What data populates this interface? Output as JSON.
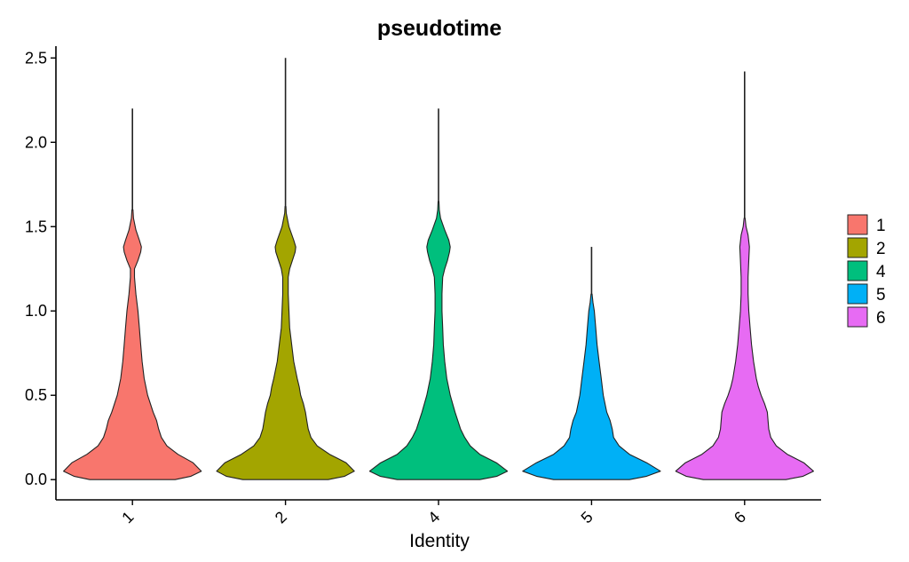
{
  "chart_data": {
    "type": "violin",
    "title": "pseudotime",
    "xlabel": "Identity",
    "ylabel": "",
    "ylim": [
      -0.12,
      2.57
    ],
    "yticks": [
      0.0,
      0.5,
      1.0,
      1.5,
      2.0,
      2.5
    ],
    "ytick_labels": [
      "0.0",
      "0.5",
      "1.0",
      "1.5",
      "2.0",
      "2.5"
    ],
    "categories": [
      "1",
      "2",
      "4",
      "5",
      "6"
    ],
    "legend": {
      "position": "right",
      "entries": [
        "1",
        "2",
        "4",
        "5",
        "6"
      ]
    },
    "grid": false,
    "series": [
      {
        "name": "1",
        "color": "#F8766D",
        "min": 0.0,
        "max": 2.2,
        "profile": [
          [
            0.0,
            0.62
          ],
          [
            0.02,
            0.85
          ],
          [
            0.05,
            1.0
          ],
          [
            0.1,
            0.88
          ],
          [
            0.15,
            0.66
          ],
          [
            0.2,
            0.5
          ],
          [
            0.25,
            0.42
          ],
          [
            0.3,
            0.38
          ],
          [
            0.35,
            0.35
          ],
          [
            0.4,
            0.3
          ],
          [
            0.5,
            0.22
          ],
          [
            0.6,
            0.17
          ],
          [
            0.7,
            0.14
          ],
          [
            0.8,
            0.12
          ],
          [
            0.9,
            0.1
          ],
          [
            1.0,
            0.08
          ],
          [
            1.1,
            0.05
          ],
          [
            1.2,
            0.03
          ],
          [
            1.25,
            0.03
          ],
          [
            1.3,
            0.08
          ],
          [
            1.35,
            0.12
          ],
          [
            1.38,
            0.13
          ],
          [
            1.42,
            0.1
          ],
          [
            1.48,
            0.05
          ],
          [
            1.55,
            0.015
          ],
          [
            1.6,
            0.008
          ]
        ]
      },
      {
        "name": "2",
        "color": "#A3A500",
        "min": 0.0,
        "max": 2.5,
        "profile": [
          [
            0.0,
            0.62
          ],
          [
            0.02,
            0.86
          ],
          [
            0.05,
            1.0
          ],
          [
            0.1,
            0.88
          ],
          [
            0.15,
            0.64
          ],
          [
            0.2,
            0.46
          ],
          [
            0.25,
            0.37
          ],
          [
            0.3,
            0.33
          ],
          [
            0.35,
            0.31
          ],
          [
            0.4,
            0.29
          ],
          [
            0.45,
            0.26
          ],
          [
            0.5,
            0.22
          ],
          [
            0.55,
            0.2
          ],
          [
            0.6,
            0.17
          ],
          [
            0.7,
            0.12
          ],
          [
            0.8,
            0.09
          ],
          [
            0.9,
            0.06
          ],
          [
            1.0,
            0.05
          ],
          [
            1.1,
            0.04
          ],
          [
            1.2,
            0.04
          ],
          [
            1.25,
            0.06
          ],
          [
            1.3,
            0.1
          ],
          [
            1.35,
            0.14
          ],
          [
            1.38,
            0.15
          ],
          [
            1.42,
            0.12
          ],
          [
            1.5,
            0.05
          ],
          [
            1.58,
            0.012
          ],
          [
            1.62,
            0.006
          ]
        ]
      },
      {
        "name": "4",
        "color": "#00BF7D",
        "min": 0.0,
        "max": 2.2,
        "profile": [
          [
            0.0,
            0.6
          ],
          [
            0.02,
            0.85
          ],
          [
            0.05,
            1.0
          ],
          [
            0.1,
            0.84
          ],
          [
            0.15,
            0.6
          ],
          [
            0.2,
            0.46
          ],
          [
            0.25,
            0.38
          ],
          [
            0.3,
            0.32
          ],
          [
            0.4,
            0.24
          ],
          [
            0.5,
            0.17
          ],
          [
            0.6,
            0.12
          ],
          [
            0.7,
            0.09
          ],
          [
            0.8,
            0.07
          ],
          [
            0.9,
            0.06
          ],
          [
            1.0,
            0.05
          ],
          [
            1.1,
            0.05
          ],
          [
            1.2,
            0.06
          ],
          [
            1.25,
            0.09
          ],
          [
            1.3,
            0.13
          ],
          [
            1.35,
            0.16
          ],
          [
            1.38,
            0.17
          ],
          [
            1.42,
            0.15
          ],
          [
            1.48,
            0.09
          ],
          [
            1.55,
            0.03
          ],
          [
            1.6,
            0.012
          ],
          [
            1.65,
            0.006
          ]
        ]
      },
      {
        "name": "5",
        "color": "#00B0F6",
        "min": 0.0,
        "max": 1.38,
        "profile": [
          [
            0.0,
            0.55
          ],
          [
            0.02,
            0.8
          ],
          [
            0.05,
            1.0
          ],
          [
            0.1,
            0.8
          ],
          [
            0.15,
            0.55
          ],
          [
            0.2,
            0.4
          ],
          [
            0.25,
            0.32
          ],
          [
            0.3,
            0.3
          ],
          [
            0.35,
            0.27
          ],
          [
            0.4,
            0.22
          ],
          [
            0.5,
            0.17
          ],
          [
            0.6,
            0.14
          ],
          [
            0.7,
            0.11
          ],
          [
            0.8,
            0.08
          ],
          [
            0.9,
            0.06
          ],
          [
            1.0,
            0.04
          ],
          [
            1.05,
            0.02
          ],
          [
            1.1,
            0.008
          ]
        ]
      },
      {
        "name": "6",
        "color": "#E76BF3",
        "min": 0.0,
        "max": 2.42,
        "profile": [
          [
            0.0,
            0.6
          ],
          [
            0.02,
            0.85
          ],
          [
            0.05,
            1.0
          ],
          [
            0.1,
            0.86
          ],
          [
            0.15,
            0.62
          ],
          [
            0.2,
            0.46
          ],
          [
            0.25,
            0.38
          ],
          [
            0.3,
            0.35
          ],
          [
            0.35,
            0.34
          ],
          [
            0.4,
            0.33
          ],
          [
            0.45,
            0.29
          ],
          [
            0.5,
            0.24
          ],
          [
            0.55,
            0.2
          ],
          [
            0.6,
            0.17
          ],
          [
            0.7,
            0.13
          ],
          [
            0.8,
            0.1
          ],
          [
            0.9,
            0.08
          ],
          [
            1.0,
            0.06
          ],
          [
            1.1,
            0.05
          ],
          [
            1.2,
            0.05
          ],
          [
            1.3,
            0.06
          ],
          [
            1.38,
            0.07
          ],
          [
            1.45,
            0.05
          ],
          [
            1.5,
            0.02
          ],
          [
            1.55,
            0.008
          ]
        ]
      }
    ]
  }
}
